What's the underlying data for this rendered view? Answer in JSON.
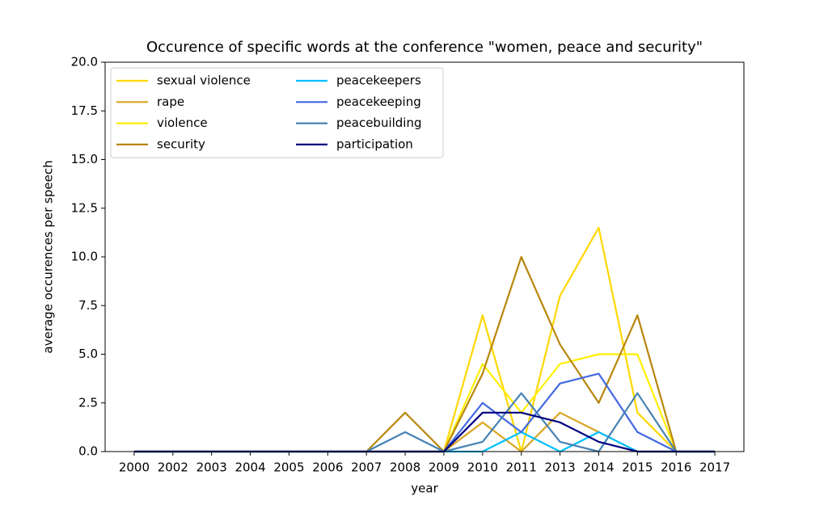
{
  "chart_data": {
    "type": "line",
    "title": "Occurence of specific words at the conference \"women, peace and security\"",
    "xlabel": "year",
    "ylabel": "average occurences per speech",
    "categories": [
      "2000",
      "2002",
      "2003",
      "2004",
      "2005",
      "2006",
      "2007",
      "2008",
      "2009",
      "2010",
      "2011",
      "2013",
      "2014",
      "2015",
      "2016",
      "2017"
    ],
    "series": [
      {
        "name": "sexual violence",
        "color": "#ffd700",
        "values": [
          0,
          0,
          0,
          0,
          0,
          0,
          0,
          0,
          0,
          7,
          0,
          8,
          11.5,
          2,
          0,
          0
        ]
      },
      {
        "name": "rape",
        "color": "#daa520",
        "values": [
          0,
          0,
          0,
          0,
          0,
          0,
          0,
          0,
          0,
          1.5,
          0,
          2,
          1,
          0,
          0,
          0
        ]
      },
      {
        "name": "violence",
        "color": "#ffee00",
        "values": [
          0,
          0,
          0,
          0,
          0,
          0,
          0,
          0,
          0,
          4.5,
          2,
          4.5,
          5,
          5,
          0,
          0
        ]
      },
      {
        "name": "security",
        "color": "#b8860b",
        "values": [
          0,
          0,
          0,
          0,
          0,
          0,
          0,
          2,
          0,
          4,
          10,
          5.5,
          2.5,
          7,
          0,
          0
        ]
      },
      {
        "name": "peacekeepers",
        "color": "#00bfff",
        "values": [
          0,
          0,
          0,
          0,
          0,
          0,
          0,
          0,
          0,
          0,
          1,
          0,
          1,
          0,
          0,
          0
        ]
      },
      {
        "name": "peacekeeping",
        "color": "#4169e1",
        "values": [
          0,
          0,
          0,
          0,
          0,
          0,
          0,
          0,
          0,
          2.5,
          1,
          3.5,
          4,
          1,
          0,
          0
        ]
      },
      {
        "name": "peacebuilding",
        "color": "#4682b4",
        "values": [
          0,
          0,
          0,
          0,
          0,
          0,
          0,
          1,
          0,
          0.5,
          3,
          0.5,
          0,
          3,
          0,
          0
        ]
      },
      {
        "name": "participation",
        "color": "#000080",
        "values": [
          0,
          0,
          0,
          0,
          0,
          0,
          0,
          0,
          0,
          2,
          2,
          1.5,
          0.5,
          0,
          0,
          0
        ]
      }
    ],
    "ylim": [
      0,
      20
    ],
    "yticks": [
      {
        "value": 0,
        "label": "0.0"
      },
      2.5,
      {
        "value": 5,
        "label": "5.0"
      },
      7.5,
      {
        "value": 10,
        "label": "10.0"
      },
      12.5,
      {
        "value": 15,
        "label": "15.0"
      },
      17.5,
      {
        "value": 20,
        "label": "20.0"
      }
    ],
    "legend": "upper left",
    "legend_columns": 2,
    "grid": false
  }
}
